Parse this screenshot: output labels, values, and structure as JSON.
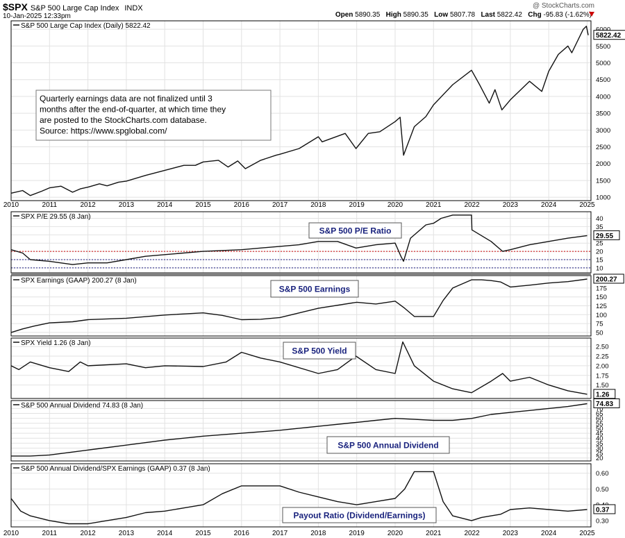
{
  "header": {
    "symbol": "$SPX",
    "name": "S&P 500 Large Cap Index",
    "exchange": "INDX",
    "date": "10-Jan-2025 12:33pm",
    "open_label": "Open",
    "open": "5890.35",
    "high_label": "High",
    "high": "5890.35",
    "low_label": "Low",
    "low": "5807.78",
    "last_label": "Last",
    "last": "5822.42",
    "chg_label": "Chg",
    "chg": "-95.83 (-1.62%)",
    "watermark": "@ StockCharts.com"
  },
  "colors": {
    "line": "#111111",
    "grid": "#e2e2e2",
    "red_ref": "#cc0000",
    "navy_ref": "#1a1a80",
    "label_text": "#1a237e",
    "down": "#cc0000"
  },
  "annotation": "Quarterly earnings data are not finalized until 3 months after the end-of-quarter, at which time they are posted to the StockCharts.com database. Source: https://www.spglobal.com/",
  "chart_data": [
    {
      "type": "line",
      "id": "price",
      "legend": "S&P 500 Large Cap Index (Daily) 5822.42",
      "last_value": "5822.42",
      "x_ticks": [
        "2010",
        "2011",
        "2012",
        "2013",
        "2014",
        "2015",
        "2016",
        "2017",
        "2018",
        "2019",
        "2020",
        "2021",
        "2022",
        "2023",
        "2024",
        "2025"
      ],
      "y_ticks": [
        1000,
        1500,
        2000,
        2500,
        3000,
        3500,
        4000,
        4500,
        5000,
        5500,
        6000
      ],
      "ylim": [
        900,
        6250
      ],
      "x": [
        2010.0,
        2010.3,
        2010.5,
        2010.8,
        2011.0,
        2011.3,
        2011.6,
        2011.8,
        2012.0,
        2012.3,
        2012.5,
        2012.8,
        2013.0,
        2013.5,
        2014.0,
        2014.5,
        2014.8,
        2015.0,
        2015.4,
        2015.65,
        2015.9,
        2016.1,
        2016.5,
        2016.9,
        2017.0,
        2017.5,
        2018.0,
        2018.1,
        2018.7,
        2018.98,
        2019.3,
        2019.6,
        2020.0,
        2020.13,
        2020.22,
        2020.5,
        2020.8,
        2021.0,
        2021.5,
        2021.99,
        2022.2,
        2022.45,
        2022.6,
        2022.78,
        2023.0,
        2023.5,
        2023.82,
        2024.0,
        2024.25,
        2024.5,
        2024.6,
        2024.9,
        2024.98,
        2025.03
      ],
      "y": [
        1120,
        1200,
        1050,
        1180,
        1280,
        1330,
        1150,
        1250,
        1300,
        1400,
        1340,
        1450,
        1480,
        1650,
        1800,
        1950,
        1950,
        2050,
        2100,
        1900,
        2080,
        1850,
        2100,
        2250,
        2280,
        2450,
        2800,
        2650,
        2900,
        2450,
        2900,
        2950,
        3250,
        3380,
        2250,
        3100,
        3400,
        3750,
        4350,
        4780,
        4350,
        3800,
        4200,
        3600,
        3900,
        4450,
        4150,
        4750,
        5250,
        5500,
        5300,
        6000,
        6090,
        5822
      ]
    },
    {
      "type": "line",
      "id": "pe",
      "legend": "SPX P/E 29.55 (8 Jan)",
      "title": "S&P 500 P/E Ratio",
      "last_value": "29.55",
      "y_ticks": [
        10,
        15,
        20,
        25,
        30,
        35,
        40
      ],
      "ylim": [
        7,
        44
      ],
      "ref_lines": [
        {
          "value": 20,
          "color": "red"
        },
        {
          "value": 15,
          "color": "navy"
        },
        {
          "value": 10,
          "color": "navy"
        }
      ],
      "x": [
        2010.0,
        2010.3,
        2010.5,
        2011.0,
        2011.6,
        2012.0,
        2012.5,
        2013.0,
        2013.5,
        2014.0,
        2015.0,
        2016.0,
        2017.0,
        2017.5,
        2018.0,
        2018.5,
        2018.98,
        2019.5,
        2020.0,
        2020.15,
        2020.22,
        2020.4,
        2020.8,
        2021.0,
        2021.2,
        2021.5,
        2021.99,
        2022.0,
        2022.5,
        2022.8,
        2023.0,
        2023.5,
        2024.0,
        2024.5,
        2025.0
      ],
      "y": [
        21,
        19,
        15,
        14,
        12,
        13,
        13,
        15,
        17,
        18,
        20,
        21,
        23,
        24,
        26,
        26,
        22,
        24,
        25,
        17,
        14,
        28,
        36,
        37,
        40,
        42,
        42,
        33,
        26,
        20,
        21,
        24,
        26,
        28,
        29.55
      ]
    },
    {
      "type": "line",
      "id": "earnings",
      "legend": "SPX Earnings (GAAP) 200.27 (8 Jan)",
      "title": "S&P 500 Earnings",
      "last_value": "200.27",
      "y_ticks": [
        50,
        75,
        100,
        125,
        150,
        175
      ],
      "ylim": [
        40,
        210
      ],
      "x": [
        2010.0,
        2010.3,
        2010.6,
        2011.0,
        2011.6,
        2012.0,
        2013.0,
        2014.0,
        2015.0,
        2015.5,
        2016.0,
        2016.5,
        2017.0,
        2018.0,
        2019.0,
        2019.5,
        2020.0,
        2020.25,
        2020.5,
        2020.75,
        2021.0,
        2021.25,
        2021.5,
        2021.99,
        2022.25,
        2022.5,
        2022.75,
        2023.0,
        2023.5,
        2024.0,
        2024.5,
        2025.0
      ],
      "y": [
        50,
        60,
        68,
        77,
        80,
        86,
        90,
        99,
        105,
        98,
        86,
        87,
        92,
        118,
        135,
        130,
        138,
        118,
        95,
        95,
        95,
        140,
        175,
        198,
        198,
        196,
        192,
        178,
        183,
        189,
        193,
        200.27
      ]
    },
    {
      "type": "line",
      "id": "yield",
      "legend": "SPX Yield 1.26 (8 Jan)",
      "title": "S&P 500 Yield",
      "last_value": "1.26",
      "y_ticks": [
        1.5,
        1.75,
        2.0,
        2.25,
        2.5
      ],
      "ylim": [
        1.15,
        2.72
      ],
      "x": [
        2010.0,
        2010.2,
        2010.5,
        2011.0,
        2011.5,
        2011.8,
        2012.0,
        2013.0,
        2013.5,
        2014.0,
        2015.0,
        2015.6,
        2016.0,
        2016.5,
        2017.0,
        2018.0,
        2018.5,
        2018.98,
        2019.5,
        2020.0,
        2020.2,
        2020.5,
        2021.0,
        2021.5,
        2021.99,
        2022.5,
        2022.8,
        2023.0,
        2023.5,
        2024.0,
        2024.5,
        2025.0
      ],
      "y": [
        2.0,
        1.9,
        2.1,
        1.95,
        1.85,
        2.1,
        2.0,
        2.05,
        1.95,
        2.0,
        1.98,
        2.1,
        2.35,
        2.2,
        2.1,
        1.8,
        1.9,
        2.25,
        1.9,
        1.8,
        2.62,
        2.0,
        1.6,
        1.4,
        1.3,
        1.6,
        1.8,
        1.6,
        1.7,
        1.5,
        1.35,
        1.26
      ]
    },
    {
      "type": "line",
      "id": "dividend",
      "legend": "S&P 500 Annual Dividend 74.83 (8 Jan)",
      "title": "S&P 500 Annual Dividend",
      "last_value": "74.83",
      "y_ticks": [
        20,
        25,
        30,
        35,
        40,
        45,
        50,
        55,
        60,
        65,
        70
      ],
      "ylim": [
        17,
        78
      ],
      "x": [
        2010.0,
        2010.5,
        2011.0,
        2012.0,
        2013.0,
        2014.0,
        2015.0,
        2016.0,
        2017.0,
        2018.0,
        2019.0,
        2019.5,
        2020.0,
        2020.5,
        2021.0,
        2021.5,
        2022.0,
        2022.5,
        2023.0,
        2023.5,
        2024.0,
        2024.5,
        2025.0
      ],
      "y": [
        22,
        22,
        23,
        28,
        33,
        38,
        42,
        45,
        48,
        52,
        56,
        58,
        60,
        59,
        58,
        58,
        60,
        64,
        66,
        68,
        70,
        72,
        74.83
      ]
    },
    {
      "type": "line",
      "id": "payout",
      "legend": "S&P 500 Annual Dividend/SPX Earnings (GAAP) 0.37 (8 Jan)",
      "title": "Payout Ratio (Dividend/Earnings)",
      "last_value": "0.37",
      "y_ticks": [
        0.3,
        0.4,
        0.5,
        0.6
      ],
      "ylim": [
        0.26,
        0.66
      ],
      "x": [
        2010.0,
        2010.25,
        2010.5,
        2011.0,
        2011.5,
        2012.0,
        2012.5,
        2013.0,
        2013.5,
        2014.0,
        2014.5,
        2015.0,
        2015.5,
        2016.0,
        2016.5,
        2017.0,
        2017.5,
        2018.0,
        2018.5,
        2019.0,
        2019.5,
        2020.0,
        2020.25,
        2020.5,
        2020.75,
        2021.0,
        2021.25,
        2021.5,
        2021.99,
        2022.25,
        2022.5,
        2022.75,
        2023.0,
        2023.5,
        2024.0,
        2024.5,
        2025.0
      ],
      "y": [
        0.44,
        0.36,
        0.33,
        0.3,
        0.28,
        0.28,
        0.3,
        0.32,
        0.35,
        0.36,
        0.38,
        0.4,
        0.47,
        0.52,
        0.52,
        0.52,
        0.48,
        0.45,
        0.42,
        0.4,
        0.42,
        0.44,
        0.5,
        0.61,
        0.61,
        0.61,
        0.42,
        0.33,
        0.3,
        0.32,
        0.33,
        0.34,
        0.37,
        0.38,
        0.37,
        0.36,
        0.37
      ]
    }
  ]
}
